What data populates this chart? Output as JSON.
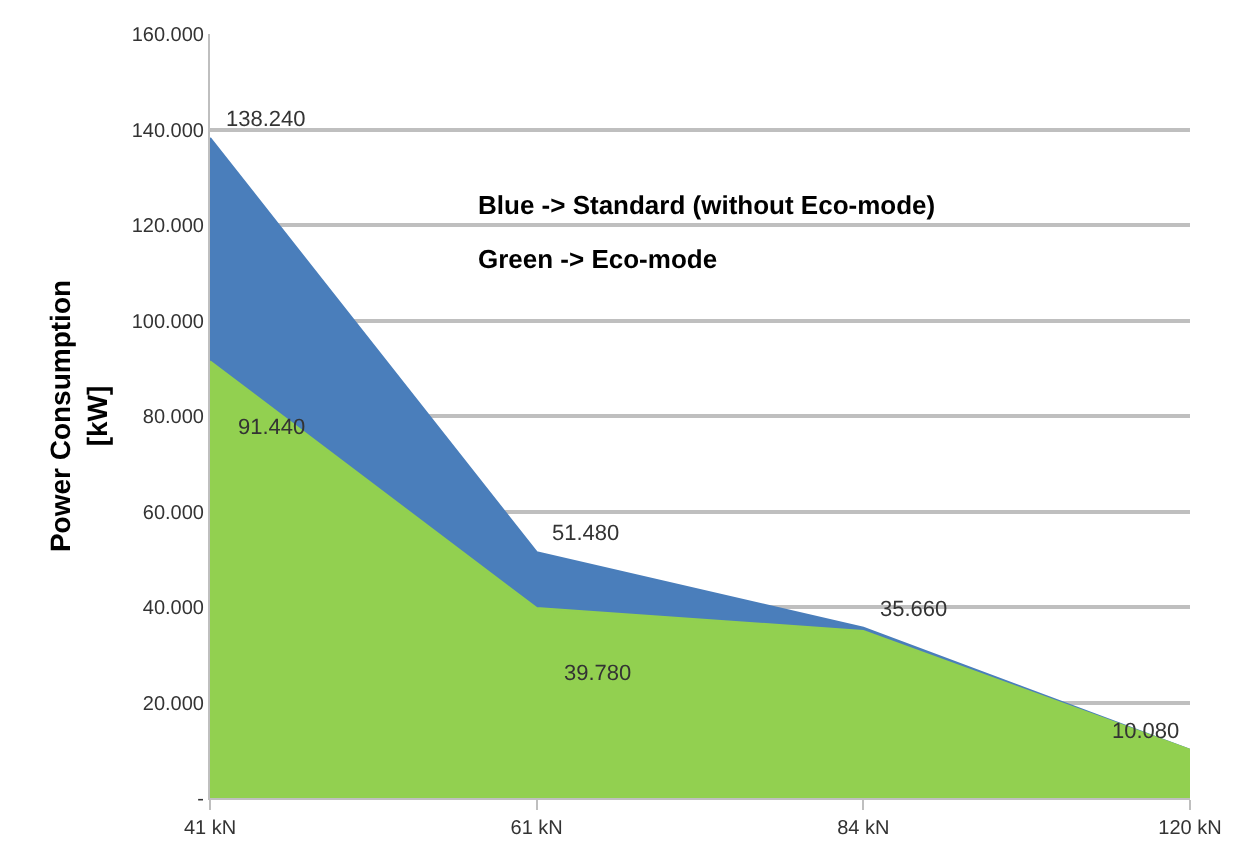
{
  "chart_data": {
    "type": "area",
    "ylabel": "Power Consumption [kW]",
    "categories": [
      "41 kN",
      "61 kN",
      "84 kN",
      "120 kN"
    ],
    "series": [
      {
        "color": "#4a7ebb",
        "values": [
          138.24,
          51.48,
          35.66,
          10.08
        ],
        "value_labels": [
          "138.240",
          "51.480",
          "35.660",
          "10.080"
        ]
      },
      {
        "color": "#92d050",
        "values": [
          91.44,
          39.78,
          35.0,
          10.08
        ],
        "value_labels": [
          "91.440",
          "39.780",
          null,
          null
        ]
      }
    ],
    "ylim": [
      0,
      160
    ],
    "yticks": [
      {
        "value": 0,
        "label": "-"
      },
      {
        "value": 20,
        "label": "20.000"
      },
      {
        "value": 40,
        "label": "40.000"
      },
      {
        "value": 60,
        "label": "60.000"
      },
      {
        "value": 80,
        "label": "80.000"
      },
      {
        "value": 100,
        "label": "100.000"
      },
      {
        "value": 120,
        "label": "120.000"
      },
      {
        "value": 140,
        "label": "140.000"
      },
      {
        "value": 160,
        "label": "160.000"
      }
    ],
    "grid": "y",
    "annotations": [
      "Blue -> Standard (without Eco-mode)",
      "Green -> Eco-mode"
    ]
  }
}
